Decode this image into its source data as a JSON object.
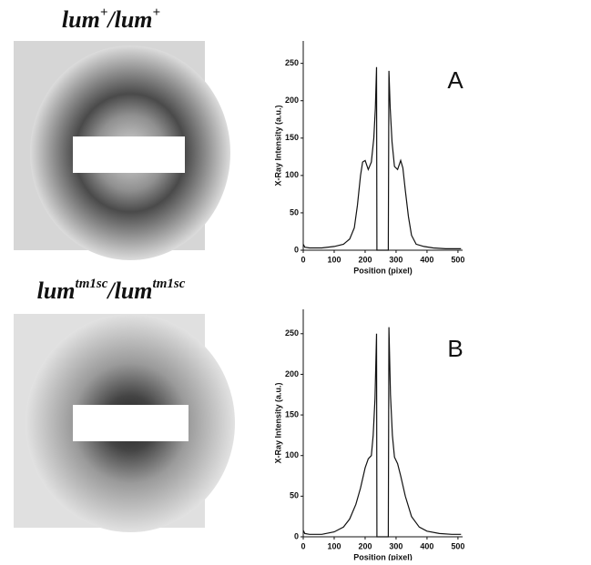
{
  "images": [
    {
      "label": [
        "lum",
        "+",
        "/lum",
        "+"
      ]
    },
    {
      "label": [
        "lum",
        "tm1sc",
        "/lum",
        "tm1sc"
      ]
    }
  ],
  "chart_data": [
    {
      "type": "line",
      "annotation": "A",
      "xlabel": "Position (pixel)",
      "ylabel": "X-Ray Intensity (a.u.)",
      "xlim": [
        0,
        515
      ],
      "ylim": [
        0,
        280
      ],
      "xticks": [
        0,
        100,
        200,
        300,
        400,
        500
      ],
      "yticks": [
        0,
        50,
        100,
        150,
        200,
        250
      ],
      "series": [
        {
          "color": "#111111",
          "x": [
            0,
            5,
            20,
            60,
            100,
            130,
            150,
            165,
            175,
            185,
            192,
            200,
            210,
            220,
            228,
            233,
            237,
            238,
            275,
            277,
            281,
            287,
            295,
            305,
            315,
            322,
            330,
            340,
            350,
            365,
            390,
            420,
            460,
            500,
            510
          ],
          "values": [
            8,
            4,
            3,
            3,
            5,
            8,
            15,
            30,
            60,
            100,
            118,
            120,
            108,
            118,
            150,
            190,
            245,
            0,
            0,
            240,
            190,
            145,
            112,
            108,
            120,
            110,
            80,
            45,
            20,
            8,
            5,
            3,
            2,
            2,
            2
          ]
        }
      ]
    },
    {
      "type": "line",
      "annotation": "B",
      "xlabel": "Position (pixel)",
      "ylabel": "X-Ray Intensity (a.u.)",
      "xlim": [
        0,
        515
      ],
      "ylim": [
        0,
        280
      ],
      "xticks": [
        0,
        100,
        200,
        300,
        400,
        500
      ],
      "yticks": [
        0,
        50,
        100,
        150,
        200,
        250
      ],
      "series": [
        {
          "color": "#111111",
          "x": [
            0,
            5,
            20,
            60,
            100,
            130,
            150,
            170,
            185,
            200,
            210,
            220,
            226,
            232,
            237,
            238,
            275,
            277,
            282,
            288,
            295,
            305,
            315,
            330,
            350,
            375,
            400,
            440,
            480,
            510
          ],
          "values": [
            8,
            4,
            3,
            3,
            6,
            12,
            22,
            40,
            60,
            85,
            96,
            100,
            125,
            170,
            250,
            0,
            0,
            258,
            175,
            125,
            98,
            90,
            75,
            50,
            25,
            12,
            7,
            4,
            3,
            3
          ]
        }
      ]
    }
  ]
}
